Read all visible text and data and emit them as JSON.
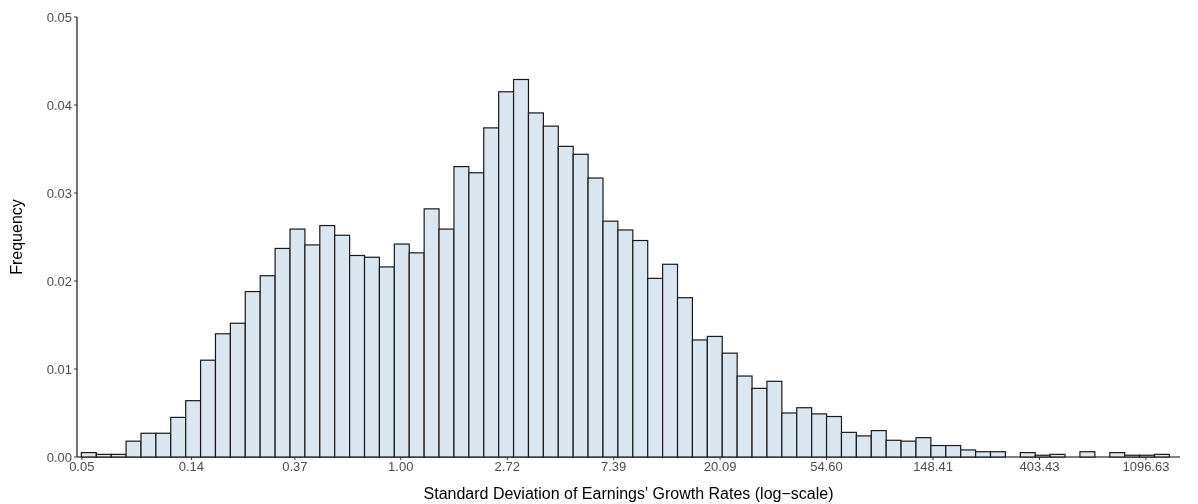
{
  "chart_data": {
    "type": "histogram",
    "xlabel": "Standard Deviation of Earnings' Growth Rates (log−scale)",
    "ylabel": "Frequency",
    "log": "x",
    "bins": [
      0.0498,
      0.0573,
      0.0659,
      0.0758,
      0.0872,
      0.1003,
      0.1153,
      0.1327,
      0.1526,
      0.1755,
      0.2019,
      0.2322,
      0.2671,
      0.3073,
      0.3535,
      0.4066,
      0.4677,
      0.5379,
      0.6188,
      0.7118,
      0.8187,
      0.9418,
      1.0833,
      1.2461,
      1.4333,
      1.6487,
      1.8965,
      2.1815,
      2.5093,
      2.8864,
      3.3201,
      3.819,
      4.3929,
      5.0531,
      5.8124,
      6.6859,
      7.6906,
      8.8463,
      10.176,
      11.705,
      13.464,
      15.487,
      17.814,
      20.491,
      23.571,
      27.113,
      31.187,
      35.874,
      41.264,
      47.465,
      54.598,
      62.8,
      72.24,
      83.1,
      95.58,
      109.95,
      126.47,
      145.47,
      167.33,
      192.48,
      221.41,
      254.68,
      292.95,
      336.97,
      387.61,
      445.86,
      512.86,
      589.93,
      678.58,
      780.55,
      897.85,
      1032.8,
      1188,
      1366.5
    ],
    "values": [
      0.0005,
      0.0003,
      0.0003,
      0.0018,
      0.0027,
      0.0027,
      0.0045,
      0.0064,
      0.011,
      0.014,
      0.0152,
      0.0188,
      0.0206,
      0.0237,
      0.0259,
      0.0241,
      0.0263,
      0.0252,
      0.0229,
      0.0227,
      0.0216,
      0.0242,
      0.0232,
      0.0282,
      0.0259,
      0.033,
      0.0323,
      0.0374,
      0.0415,
      0.0429,
      0.0391,
      0.0376,
      0.0353,
      0.0344,
      0.0317,
      0.0268,
      0.0258,
      0.0246,
      0.0203,
      0.0219,
      0.0181,
      0.0133,
      0.0137,
      0.0118,
      0.0092,
      0.0078,
      0.0086,
      0.005,
      0.0056,
      0.0049,
      0.0046,
      0.0028,
      0.0024,
      0.003,
      0.0019,
      0.0018,
      0.0022,
      0.0013,
      0.0013,
      0.0008,
      0.0006,
      0.0006,
      0,
      0.0005,
      0.0002,
      0.0003,
      0,
      0.0006,
      0,
      0.0005,
      0.0002,
      0.0002,
      0.0003
    ],
    "color": "#dae6f0",
    "xlim": [
      0.0478,
      1510
    ],
    "xticks": [
      0.05,
      0.14,
      0.37,
      {
        "value": 1,
        "label": "1.00"
      },
      2.72,
      7.39,
      20.09,
      {
        "value": 54.6,
        "label": "54.60"
      },
      148.41,
      403.43,
      1096.63
    ],
    "ylim": [
      0,
      0.05
    ],
    "yticks": [
      {
        "value": 0,
        "label": "0.00"
      },
      0.01,
      0.02,
      0.03,
      0.04,
      0.05
    ]
  }
}
